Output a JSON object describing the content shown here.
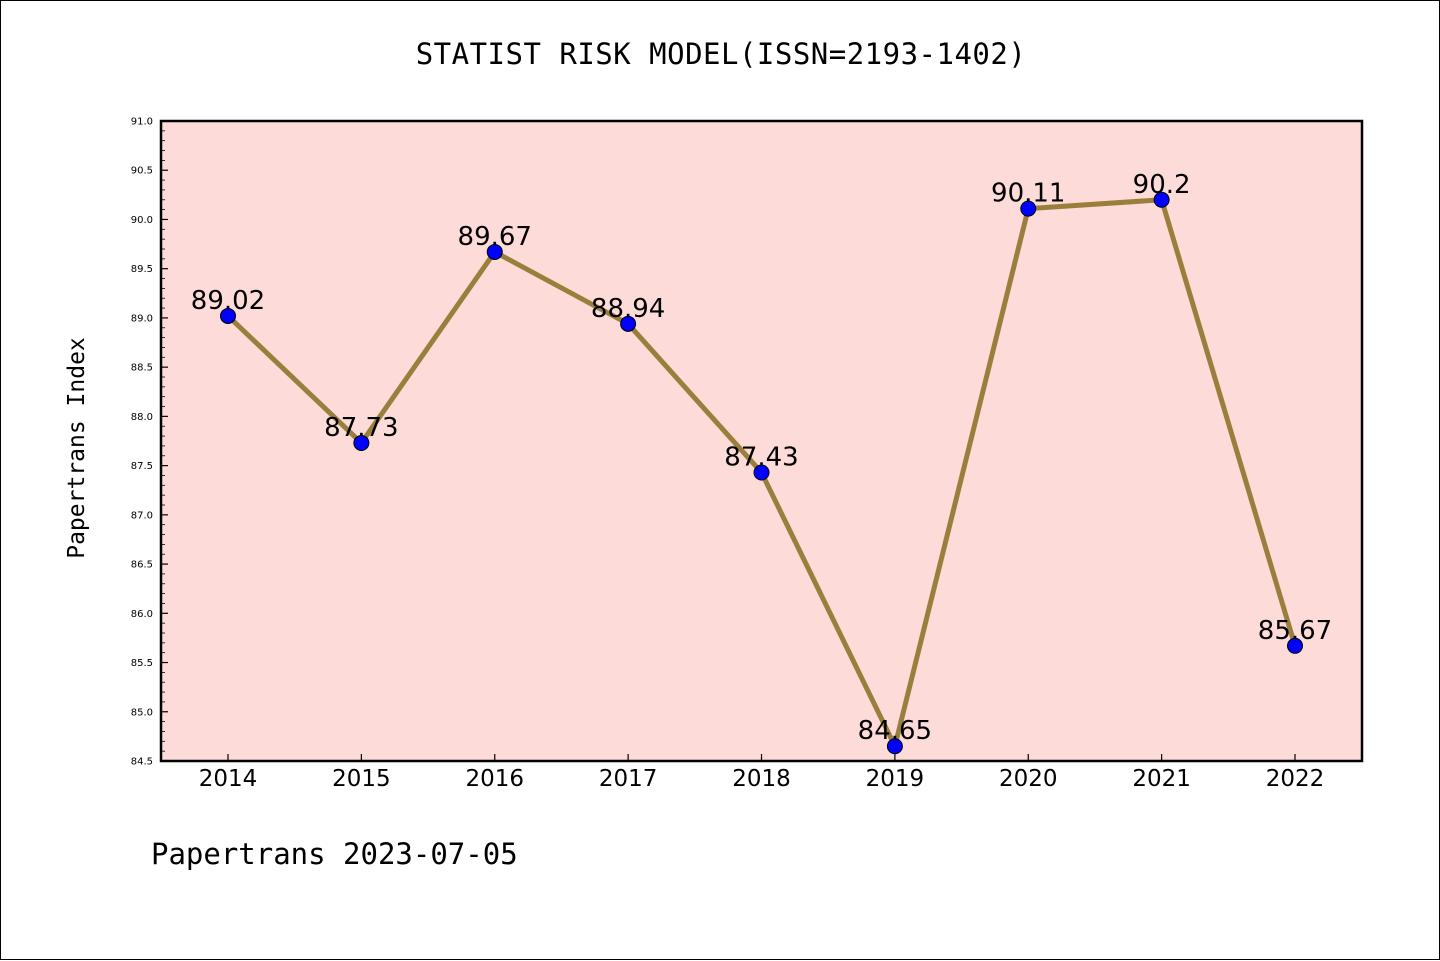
{
  "chart_data": {
    "type": "line",
    "title": "STATIST RISK MODEL(ISSN=2193-1402)",
    "xlabel": "",
    "ylabel": "Papertrans Index",
    "footer": "Papertrans 2023-07-05",
    "categories": [
      "2014",
      "2015",
      "2016",
      "2017",
      "2018",
      "2019",
      "2020",
      "2021",
      "2022"
    ],
    "series": [
      {
        "values": [
          89.02,
          87.73,
          89.67,
          88.94,
          87.43,
          84.65,
          90.11,
          90.2,
          85.67
        ],
        "data_labels": [
          "89.02",
          "87.73",
          "89.67",
          "88.94",
          "87.43",
          "84.65",
          "90.11",
          "90.2",
          "85.67"
        ]
      }
    ],
    "ylim": [
      84.5,
      91.0
    ],
    "y_ticks": [
      "84.5",
      "85.0",
      "85.5",
      "86.0",
      "86.5",
      "87.0",
      "87.5",
      "88.0",
      "88.5",
      "89.0",
      "89.5",
      "90.0",
      "90.5",
      "91.0"
    ],
    "grid": false,
    "colors": {
      "plot_background": "#fddbd8",
      "line": "#9a7f3c",
      "marker": "#0000ff"
    }
  }
}
